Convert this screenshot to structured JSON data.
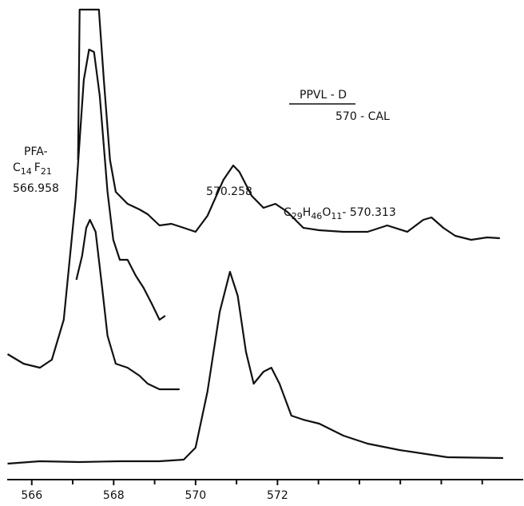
{
  "chart_data": {
    "type": "line",
    "color": "#111111",
    "xlim": [
      565.4,
      578.0
    ],
    "ylim": [
      0,
      115
    ],
    "xticks": [
      566,
      568,
      570,
      572
    ],
    "minor_xticks": [
      567,
      569,
      571,
      573,
      574,
      575,
      576,
      577
    ],
    "annotations": {
      "calibration_title": "PPVL - D",
      "calibration_sub": "570 - CAL",
      "pfa_label": "PFA-",
      "pfa_formula": [
        "C",
        "14",
        "F",
        "21"
      ],
      "pfa_mass": "566.958",
      "peak_mass": "570.258",
      "compound_formula": [
        "C",
        "29",
        "H",
        "46",
        "O",
        "11",
        "- 570.313"
      ]
    },
    "series": [
      {
        "x": [
          567.13,
          567.17,
          567.64,
          567.76,
          567.91,
          568.05,
          568.34,
          568.63,
          568.83,
          569.12,
          569.41,
          569.71,
          570.0,
          570.29,
          570.68,
          570.92,
          571.07,
          571.37,
          571.66,
          571.95,
          572.24,
          572.63,
          573.02,
          573.61,
          574.2,
          574.68,
          575.17,
          575.56,
          575.76,
          576.05,
          576.34,
          576.73,
          577.12,
          577.43
        ],
        "values": [
          76,
          113.6,
          113.6,
          96,
          76,
          68,
          65,
          63.6,
          62.4,
          59.6,
          60,
          59,
          58,
          62,
          71,
          74.6,
          73,
          67,
          64,
          65,
          63,
          59,
          58.4,
          58,
          58,
          59.6,
          58,
          61,
          61.6,
          59,
          57,
          56,
          56.6,
          56.4
        ]
      },
      {
        "x": [
          565.41,
          565.8,
          566.2,
          566.49,
          566.78,
          567.07,
          567.27,
          567.4,
          567.52,
          567.66,
          567.85,
          567.99,
          568.15,
          568.34,
          568.54,
          568.73,
          568.93,
          569.12,
          569.26
        ],
        "values": [
          27.4,
          25,
          24,
          26,
          36,
          66,
          96,
          103.6,
          103,
          92,
          68,
          56,
          51,
          51,
          47,
          44,
          40,
          36,
          37
        ]
      },
      {
        "x": [
          567.09,
          567.23,
          567.33,
          567.42,
          567.56,
          567.72,
          567.85,
          568.05,
          568.34,
          568.63,
          568.83,
          569.12,
          569.61
        ],
        "values": [
          46,
          52,
          59,
          61,
          58,
          44,
          32,
          25,
          24,
          22,
          20,
          18.6,
          18.6
        ]
      },
      {
        "x": [
          565.41,
          566.2,
          567.17,
          568.15,
          569.12,
          569.71,
          570.0,
          570.29,
          570.59,
          570.84,
          571.03,
          571.23,
          571.42,
          571.66,
          571.85,
          572.05,
          572.34,
          572.63,
          573.02,
          573.61,
          574.2,
          574.98,
          576.15,
          577.51
        ],
        "values": [
          0,
          0.6,
          0.4,
          0.6,
          0.6,
          1,
          4,
          18,
          38,
          48,
          42,
          28,
          20,
          23,
          24,
          20,
          12,
          11,
          10,
          7,
          5,
          3.4,
          1.6,
          1.4
        ]
      }
    ]
  }
}
